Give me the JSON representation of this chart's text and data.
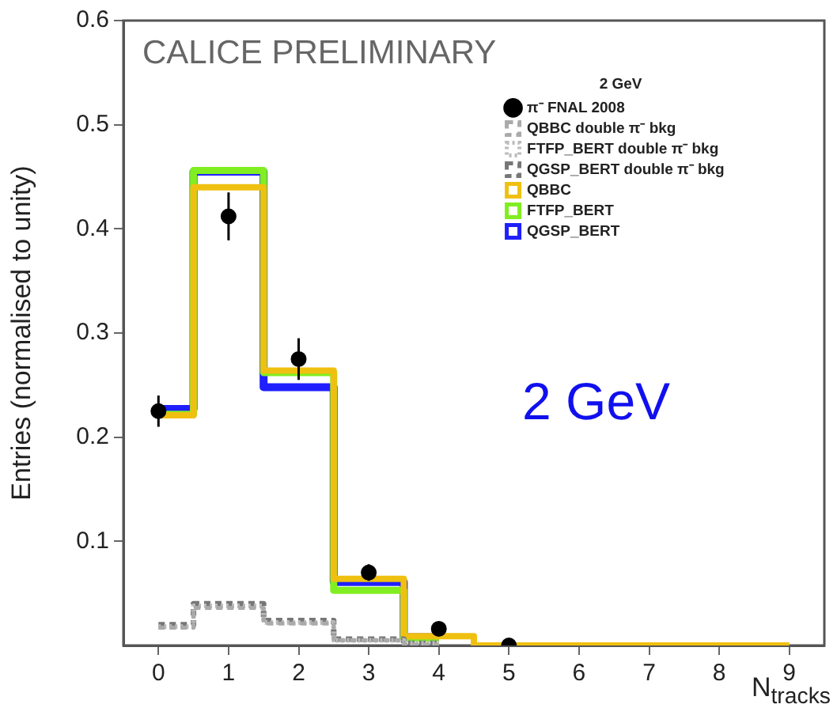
{
  "chart_data": {
    "type": "step",
    "xlabel": "N$_{tracks}$",
    "ylabel": "Entries (normalised to unity)",
    "legend_title": "2 GeV",
    "annotations": [
      "CALICE PRELIMINARY",
      "2 GeV"
    ],
    "x": [
      0,
      1,
      2,
      3,
      4,
      5,
      6,
      7,
      8,
      9
    ],
    "xlim": [
      -0.5,
      9.5
    ],
    "xticks": [
      0,
      1,
      2,
      3,
      4,
      5,
      6,
      7,
      8,
      9
    ],
    "ylim": [
      0,
      0.6
    ],
    "yticks": [
      {
        "value": 0.1,
        "label": "0.1"
      },
      {
        "value": 0.2,
        "label": "0.2"
      },
      {
        "value": 0.3,
        "label": "0.3"
      },
      {
        "value": 0.4,
        "label": "0.4"
      },
      {
        "value": 0.5,
        "label": "0.5"
      },
      {
        "value": 0.6,
        "label": "0.6"
      }
    ],
    "grid": false,
    "legend": "top right",
    "series": [
      {
        "name": "π⁻ FNAL 2008",
        "type": "scatter",
        "marker": "circle",
        "color": "#000000",
        "values": [
          0.225,
          0.412,
          0.275,
          0.07,
          0.016,
          0,
          null,
          null,
          null,
          null
        ],
        "errors": [
          0.015,
          0.023,
          0.02,
          0.008,
          0.004,
          null,
          null,
          null,
          null,
          null
        ]
      },
      {
        "name": "QGSP_BERT",
        "color": "#1f1fff",
        "values": [
          0.227,
          0.455,
          0.248,
          0.061,
          0.008,
          null,
          null,
          null,
          null,
          null
        ]
      },
      {
        "name": "FTFP_BERT",
        "color": "#80ee20",
        "values": [
          0.222,
          0.456,
          0.262,
          0.053,
          0.007,
          null,
          null,
          null,
          null,
          null
        ]
      },
      {
        "name": "QBBC",
        "color": "#f0c010",
        "values": [
          0.221,
          0.44,
          0.264,
          0.064,
          0.009,
          0,
          0,
          0,
          0,
          0
        ]
      },
      {
        "name": "QGSP_BERT double π⁻ bkg",
        "color": "#777777",
        "line_style": "dashed",
        "values": [
          0.02,
          0.04,
          0.024,
          0.006,
          0.002,
          null,
          null,
          null,
          null,
          null
        ]
      },
      {
        "name": "FTFP_BERT double π⁻ bkg",
        "color": "#bbbbbb",
        "line_style": "dotted",
        "values": [
          0.018,
          0.038,
          0.022,
          0.005,
          0.002,
          null,
          null,
          null,
          null,
          null
        ]
      },
      {
        "name": "QBBC double π⁻ bkg",
        "color": "#aaaaaa",
        "line_style": "dashed",
        "values": [
          0.017,
          0.036,
          0.021,
          0.005,
          0.001,
          null,
          null,
          null,
          null,
          null
        ]
      }
    ]
  }
}
